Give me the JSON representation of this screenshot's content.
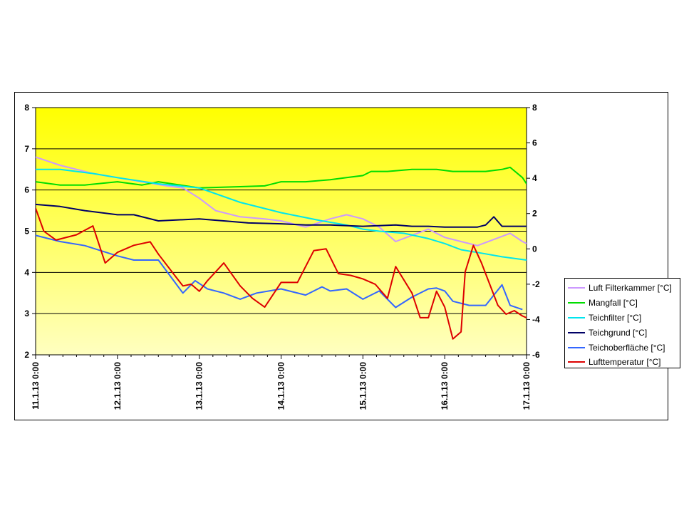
{
  "chart_data": {
    "type": "line",
    "title": "",
    "xlabel": "",
    "ylabel": "",
    "y_left_lim": [
      2,
      8
    ],
    "y_left_ticks": [
      "2",
      "3",
      "4",
      "5",
      "6",
      "7",
      "8"
    ],
    "y_right_lim": [
      -6,
      8
    ],
    "y_right_ticks": [
      "-6",
      "-4",
      "-2",
      "0",
      "2",
      "4",
      "6",
      "8"
    ],
    "x_tick_labels": [
      "11.1.13 0:00",
      "12.1.13 0:00",
      "13.1.13 0:00",
      "14.1.13 0:00",
      "15.1.13 0:00",
      "16.1.13 0:00",
      "17.1.13 0:00"
    ],
    "x_range_days": [
      0,
      6
    ],
    "grid": "horizontal",
    "legend_position": "right",
    "plot_background": [
      "#ffff00",
      "#ffffc0"
    ],
    "series": [
      {
        "name": "Luft Filterkammer [°C]",
        "color": "#cc99ff",
        "axis": "left",
        "x": [
          0,
          0.3,
          0.7,
          1.0,
          1.3,
          1.6,
          1.8,
          2.0,
          2.2,
          2.5,
          2.8,
          3.0,
          3.3,
          3.6,
          3.8,
          4.0,
          4.2,
          4.4,
          4.6,
          4.8,
          5.0,
          5.2,
          5.4,
          5.6,
          5.8,
          5.95,
          6.0
        ],
        "y": [
          6.8,
          6.6,
          6.4,
          6.3,
          6.2,
          6.1,
          6.05,
          5.8,
          5.5,
          5.35,
          5.3,
          5.25,
          5.1,
          5.3,
          5.4,
          5.3,
          5.1,
          4.75,
          4.9,
          5.05,
          4.85,
          4.75,
          4.65,
          4.8,
          4.95,
          4.75,
          4.7
        ]
      },
      {
        "name": "Mangfall [°C]",
        "color": "#00dd00",
        "axis": "left",
        "x": [
          0,
          0.3,
          0.6,
          1.0,
          1.3,
          1.5,
          2.0,
          2.5,
          2.8,
          3.0,
          3.3,
          3.6,
          3.8,
          4.0,
          4.1,
          4.3,
          4.6,
          4.9,
          5.1,
          5.3,
          5.5,
          5.7,
          5.8,
          5.95,
          6.0
        ],
        "y": [
          6.2,
          6.12,
          6.12,
          6.2,
          6.12,
          6.2,
          6.05,
          6.08,
          6.1,
          6.2,
          6.2,
          6.25,
          6.3,
          6.35,
          6.45,
          6.45,
          6.5,
          6.5,
          6.45,
          6.45,
          6.45,
          6.5,
          6.55,
          6.3,
          6.15
        ]
      },
      {
        "name": "Teichfilter [°C]",
        "color": "#00e5ee",
        "axis": "left",
        "x": [
          0,
          0.3,
          0.7,
          1.0,
          1.5,
          2.0,
          2.5,
          3.0,
          3.5,
          3.8,
          4.0,
          4.2,
          4.5,
          4.8,
          5.0,
          5.2,
          5.5,
          5.7,
          6.0
        ],
        "y": [
          6.5,
          6.5,
          6.4,
          6.3,
          6.15,
          6.05,
          5.7,
          5.45,
          5.25,
          5.15,
          5.05,
          5.0,
          4.95,
          4.82,
          4.7,
          4.55,
          4.45,
          4.38,
          4.3
        ]
      },
      {
        "name": "Teichgrund [°C]",
        "color": "#000066",
        "axis": "left",
        "x": [
          0,
          0.3,
          0.6,
          1.0,
          1.2,
          1.5,
          2.0,
          2.3,
          2.6,
          3.0,
          3.3,
          3.6,
          4.0,
          4.4,
          4.6,
          4.8,
          5.0,
          5.2,
          5.4,
          5.5,
          5.6,
          5.7,
          6.0
        ],
        "y": [
          5.65,
          5.6,
          5.5,
          5.4,
          5.4,
          5.25,
          5.3,
          5.25,
          5.2,
          5.18,
          5.15,
          5.15,
          5.12,
          5.15,
          5.12,
          5.12,
          5.1,
          5.1,
          5.1,
          5.15,
          5.35,
          5.12,
          5.12
        ]
      },
      {
        "name": "Teichoberfläche [°C]",
        "color": "#3366ff",
        "axis": "left",
        "x": [
          0,
          0.3,
          0.6,
          1.0,
          1.2,
          1.5,
          1.8,
          1.95,
          2.1,
          2.3,
          2.5,
          2.7,
          3.0,
          3.3,
          3.5,
          3.6,
          3.8,
          4.0,
          4.2,
          4.4,
          4.6,
          4.8,
          4.9,
          5.0,
          5.1,
          5.3,
          5.5,
          5.6,
          5.7,
          5.8,
          5.95
        ],
        "y": [
          4.9,
          4.75,
          4.65,
          4.4,
          4.3,
          4.3,
          3.5,
          3.8,
          3.6,
          3.5,
          3.35,
          3.5,
          3.6,
          3.45,
          3.65,
          3.55,
          3.6,
          3.35,
          3.55,
          3.15,
          3.4,
          3.6,
          3.62,
          3.55,
          3.3,
          3.2,
          3.2,
          3.45,
          3.7,
          3.2,
          3.1
        ]
      },
      {
        "name": "Lufttemperatur [°C]",
        "color": "#dd0000",
        "axis": "right",
        "x": [
          0,
          0.1,
          0.25,
          0.5,
          0.7,
          0.85,
          1.0,
          1.2,
          1.4,
          1.5,
          1.7,
          1.8,
          1.9,
          2.0,
          2.1,
          2.3,
          2.5,
          2.65,
          2.8,
          3.0,
          3.2,
          3.4,
          3.55,
          3.7,
          3.85,
          4.0,
          4.15,
          4.3,
          4.4,
          4.6,
          4.7,
          4.8,
          4.9,
          5.0,
          5.1,
          5.2,
          5.25,
          5.35,
          5.45,
          5.55,
          5.65,
          5.75,
          5.85,
          5.95,
          6.0
        ],
        "y": [
          2.3,
          1.0,
          0.5,
          0.8,
          1.3,
          -0.8,
          -0.2,
          0.2,
          0.4,
          -0.3,
          -1.5,
          -2.1,
          -2.0,
          -2.4,
          -1.8,
          -0.8,
          -2.1,
          -2.8,
          -3.3,
          -1.9,
          -1.9,
          -0.1,
          0.0,
          -1.4,
          -1.5,
          -1.7,
          -2.0,
          -2.8,
          -1.0,
          -2.5,
          -3.9,
          -3.9,
          -2.4,
          -3.3,
          -5.1,
          -4.7,
          -1.3,
          0.2,
          -0.8,
          -2.0,
          -3.2,
          -3.7,
          -3.5,
          -3.8,
          -3.9
        ]
      }
    ]
  }
}
